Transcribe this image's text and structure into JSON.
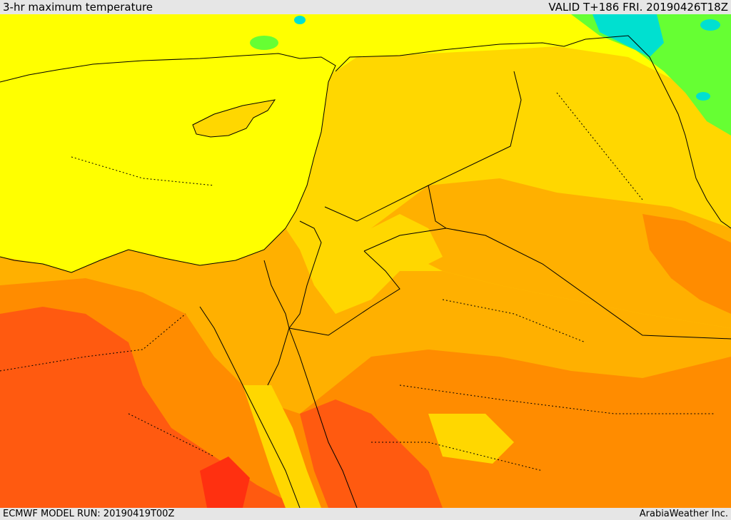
{
  "header": {
    "title": "3-hr maximum temperature",
    "valid": "VALID T+186 FRI. 20190426T18Z"
  },
  "footer": {
    "model_run": "ECMWF MODEL RUN: 20190419T00Z",
    "credit": "ArabiaWeather Inc."
  },
  "colors": {
    "sea": "#ffff00",
    "warm": "#ffd700",
    "hot": "#ffb000",
    "hotter": "#ff8c00",
    "hottest": "#ff5a10",
    "extreme": "#ff3010",
    "cool_green": "#66ff33",
    "cool_cyan": "#00e0d0",
    "border": "#000000"
  }
}
